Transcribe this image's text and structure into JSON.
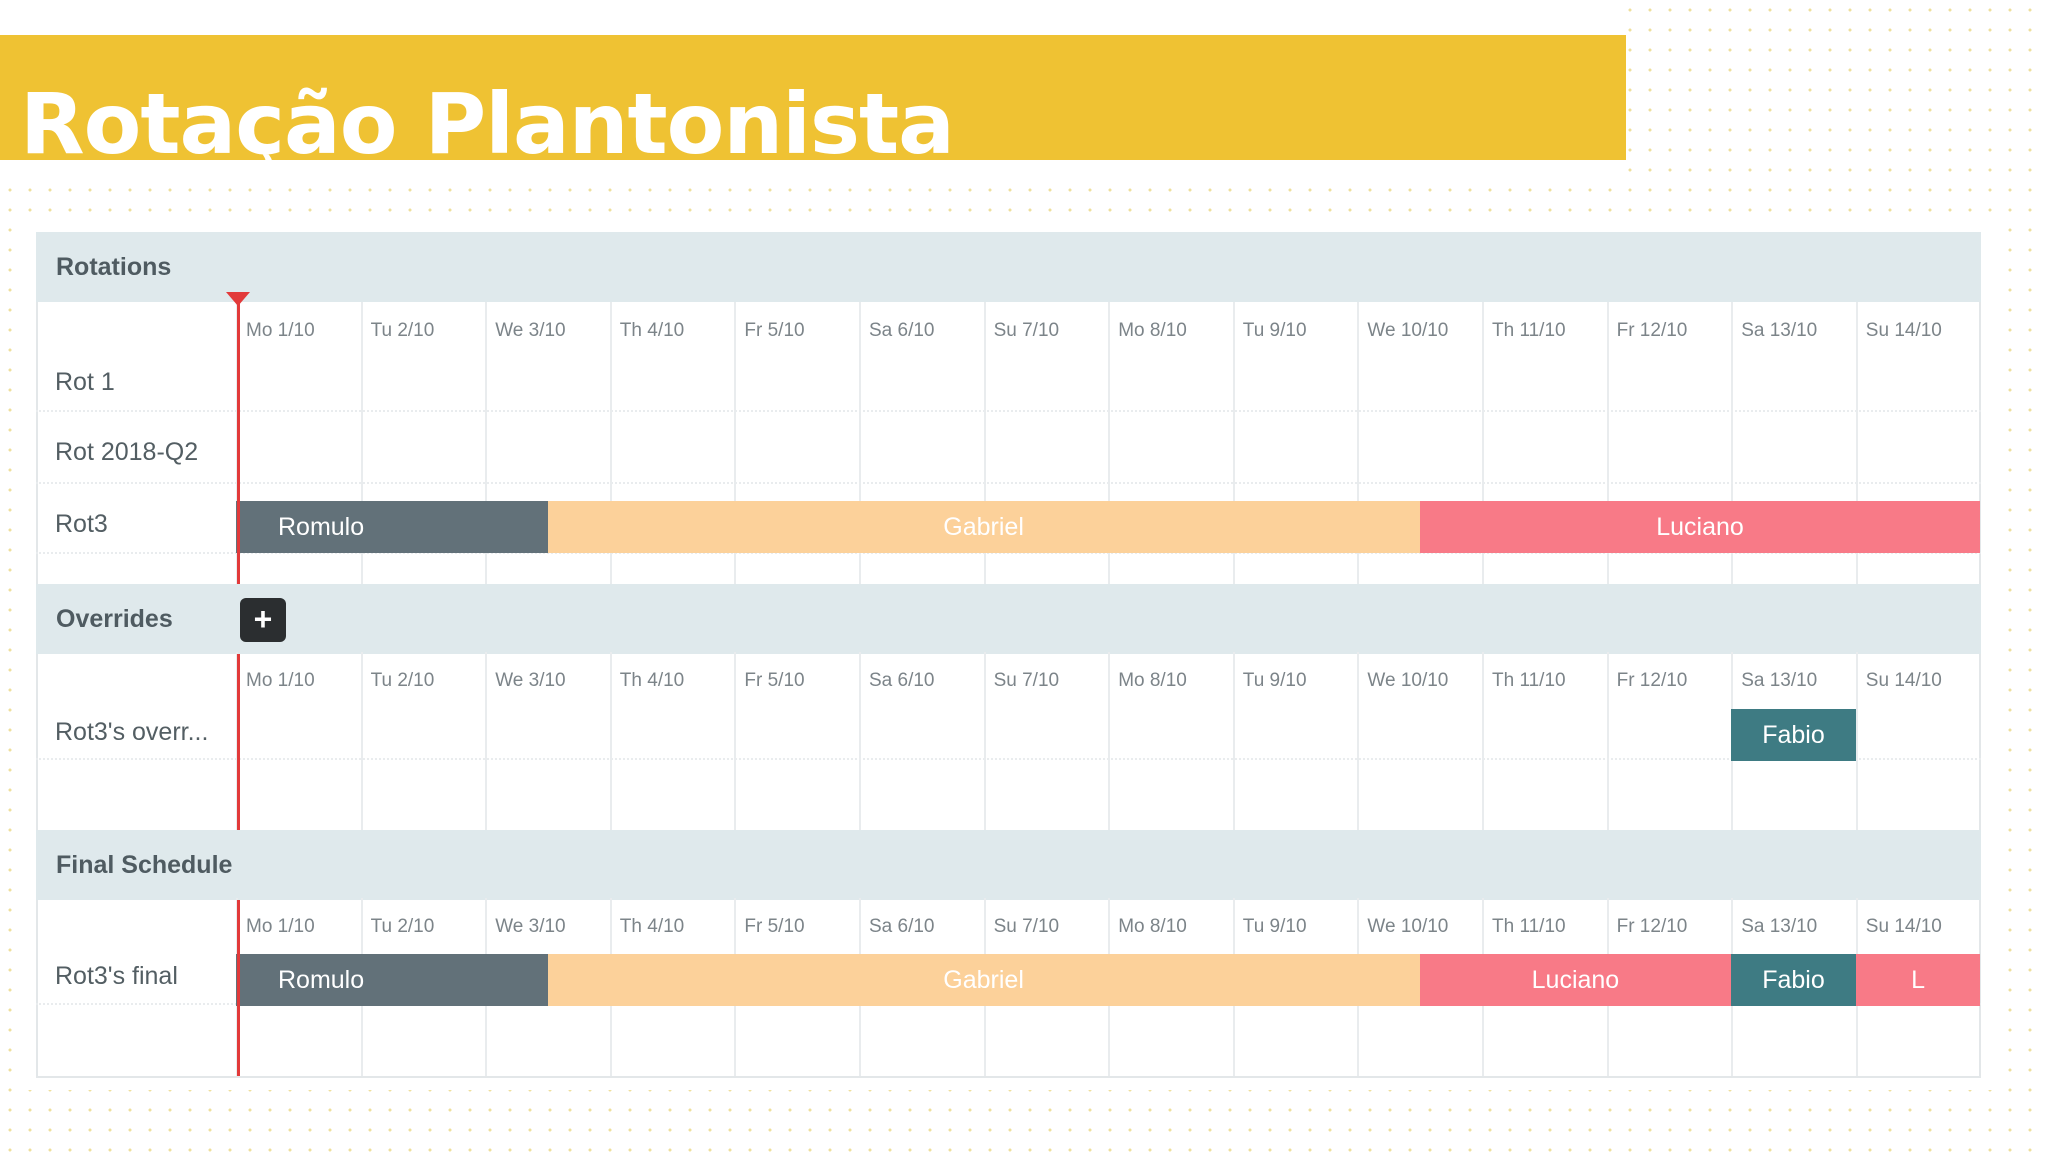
{
  "title": "Rotação Plantonista",
  "days": [
    "Mo 1/10",
    "Tu 2/10",
    "We 3/10",
    "Th 4/10",
    "Fr 5/10",
    "Sa 6/10",
    "Su 7/10",
    "Mo 8/10",
    "Tu 9/10",
    "We 10/10",
    "Th 11/10",
    "Fr 12/10",
    "Sa 13/10",
    "Su 14/10"
  ],
  "rotations": {
    "title": "Rotations",
    "rows": [
      "Rot 1",
      "Rot 2018-Q2",
      "Rot3"
    ],
    "rot3_shifts": [
      {
        "name": "Romulo",
        "from_day": 0,
        "to_day": 2.5,
        "kind": "romulo"
      },
      {
        "name": "Gabriel",
        "from_day": 2.5,
        "to_day": 9.5,
        "kind": "gabriel"
      },
      {
        "name": "Luciano",
        "from_day": 9.5,
        "to_day": 14,
        "kind": "luciano"
      }
    ]
  },
  "overrides": {
    "title": "Overrides",
    "add_label": "+",
    "rows": [
      "Rot3's overr..."
    ],
    "shifts": [
      {
        "name": "Fabio",
        "from_day": 12,
        "to_day": 13,
        "kind": "fabio"
      }
    ]
  },
  "final": {
    "title": "Final Schedule",
    "rows": [
      "Rot3's final"
    ],
    "shifts": [
      {
        "name": "Romulo",
        "from_day": 0,
        "to_day": 2.5,
        "kind": "romulo"
      },
      {
        "name": "Gabriel",
        "from_day": 2.5,
        "to_day": 9.5,
        "kind": "gabriel"
      },
      {
        "name": "Luciano",
        "from_day": 9.5,
        "to_day": 12,
        "kind": "luciano"
      },
      {
        "name": "Fabio",
        "from_day": 12,
        "to_day": 13,
        "kind": "fabio"
      },
      {
        "name": "L",
        "from_day": 13,
        "to_day": 14,
        "kind": "luciano"
      }
    ]
  },
  "colors": {
    "banner": "#efc233",
    "romulo": "#627179",
    "gabriel": "#fcd19a",
    "luciano": "#f87a87",
    "fabio": "#3e7b83",
    "now_line": "#e23a3a"
  }
}
